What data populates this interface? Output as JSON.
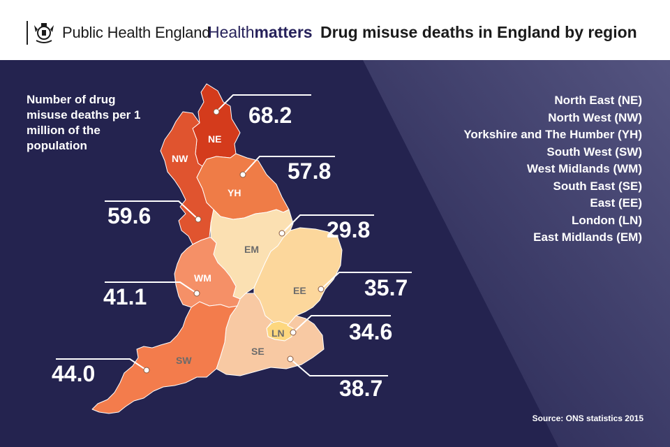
{
  "header": {
    "org_name": "Public Health England",
    "brand_prefix": "Health",
    "brand_suffix": "matters",
    "title": "Drug misuse deaths in England by region"
  },
  "caption": "Number of drug misuse deaths per 1 million of the population",
  "legend": [
    "North East (NE)",
    "North West (NW)",
    "Yorkshire and The Humber (YH)",
    "South West (SW)",
    "West Midlands (WM)",
    "South East (SE)",
    "East (EE)",
    "London (LN)",
    "East Midlands (EM)"
  ],
  "source": "Source: ONS statistics 2015",
  "colors": {
    "background": "#24234f",
    "NE": "#d43b1c",
    "NW": "#e0542f",
    "YH": "#ef7c47",
    "WM": "#f59067",
    "SW": "#f37c4c",
    "EM": "#fbe0b2",
    "EE": "#fcd79c",
    "SE": "#f8c9a3",
    "LN": "#fdd77f"
  },
  "regions": {
    "NE": {
      "label": "NE",
      "value": "68.2"
    },
    "NW": {
      "label": "NW",
      "value": "59.6"
    },
    "YH": {
      "label": "YH",
      "value": "57.8"
    },
    "EM": {
      "label": "EM",
      "value": "29.8"
    },
    "WM": {
      "label": "WM",
      "value": "41.1"
    },
    "EE": {
      "label": "EE",
      "value": "35.7"
    },
    "LN": {
      "label": "LN",
      "value": "34.6"
    },
    "SE": {
      "label": "SE",
      "value": "38.7"
    },
    "SW": {
      "label": "SW",
      "value": "44.0"
    }
  }
}
